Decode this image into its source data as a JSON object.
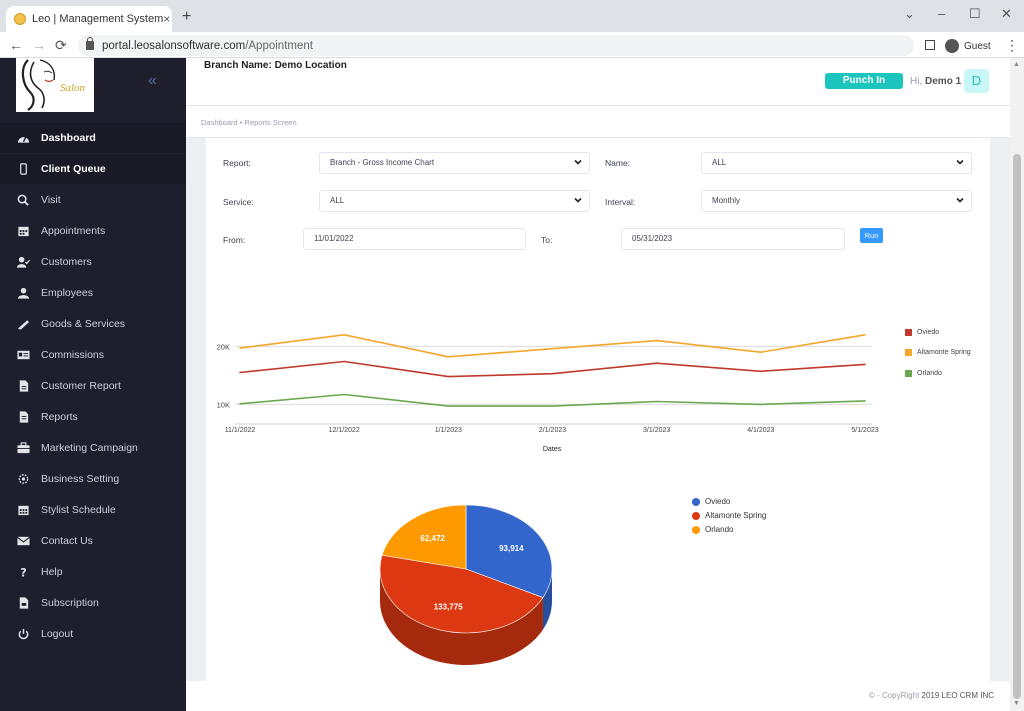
{
  "browser": {
    "tab_title": "Leo | Management System",
    "tab_close": "×",
    "new_tab": "+",
    "url_host": "portal.leosalonsoftware.com",
    "url_path": "/Appointment",
    "profile_label": "Guest",
    "window_controls": [
      "⌄",
      "–",
      "☐",
      "✕"
    ],
    "nav": [
      "←",
      "→",
      "⟳"
    ]
  },
  "sidebar": {
    "logo_text": "Salon",
    "collapse_glyph": "«",
    "items": [
      {
        "label": "Dashboard",
        "icon": "gauge-icon",
        "active": true
      },
      {
        "label": "Client Queue",
        "icon": "tablet-icon",
        "active": true
      },
      {
        "label": "Visit",
        "icon": "search-plus-icon"
      },
      {
        "label": "Appointments",
        "icon": "calendar-icon"
      },
      {
        "label": "Customers",
        "icon": "user-check-icon"
      },
      {
        "label": "Employees",
        "icon": "user-tie-icon"
      },
      {
        "label": "Goods & Services",
        "icon": "tools-icon"
      },
      {
        "label": "Commissions",
        "icon": "id-card-icon"
      },
      {
        "label": "Customer Report",
        "icon": "file-icon"
      },
      {
        "label": "Reports",
        "icon": "file-alt-icon"
      },
      {
        "label": "Marketing Campaign",
        "icon": "briefcase-icon"
      },
      {
        "label": "Business Setting",
        "icon": "gear-icon"
      },
      {
        "label": "Stylist Schedule",
        "icon": "calendar-grid-icon"
      },
      {
        "label": "Contact Us",
        "icon": "envelope-icon"
      },
      {
        "label": "Help",
        "icon": "question-icon"
      },
      {
        "label": "Subscription",
        "icon": "file-invoice-icon"
      },
      {
        "label": "Logout",
        "icon": "power-icon"
      }
    ]
  },
  "header": {
    "branch_name": "Branch Name: Demo Location",
    "punch_in": "Punch In",
    "greeting": "Hi,",
    "user_name": "Demo 1",
    "avatar_initial": "D"
  },
  "breadcrumb": {
    "items": [
      "Dashboard",
      "•",
      "Reports Screen"
    ]
  },
  "form": {
    "report_label": "Report:",
    "report_value": "Branch - Gross Income Chart",
    "name_label": "Name:",
    "name_value": "ALL",
    "service_label": "Service:",
    "service_value": "ALL",
    "interval_label": "Interval:",
    "interval_value": "Monthly",
    "from_label": "From:",
    "from_value": "11/01/2022",
    "to_label": "To:",
    "to_value": "05/31/2023",
    "run_label": "Run"
  },
  "chart_data": [
    {
      "type": "line",
      "title": "",
      "xlabel": "Dates",
      "ylabel": "",
      "x": [
        "11/1/2022",
        "12/1/2022",
        "1/1/2023",
        "2/1/2023",
        "3/1/2023",
        "4/1/2023",
        "5/1/2023"
      ],
      "yticks": [
        "20K",
        "10K"
      ],
      "ytick_values": [
        20000,
        10000
      ],
      "ylim": [
        8000,
        28000
      ],
      "grid": true,
      "legend_position": "right",
      "series": [
        {
          "name": "Oviedo",
          "color": "#c0392b",
          "values": [
            15500,
            17400,
            14800,
            15300,
            17100,
            15700,
            16900
          ]
        },
        {
          "name": "Altamonte Spring",
          "color": "#f4a62a",
          "values": [
            19700,
            22000,
            18200,
            19600,
            21000,
            19000,
            22000
          ]
        },
        {
          "name": "Orlando",
          "color": "#6aa84f",
          "values": [
            10100,
            11700,
            9700,
            9700,
            10500,
            10000,
            10600
          ]
        }
      ]
    },
    {
      "type": "pie",
      "title": "",
      "legend_position": "right",
      "slices": [
        {
          "name": "Oviedo",
          "value": 93914,
          "label": "93,914",
          "color": "#3366cc",
          "shade": "#264f9e"
        },
        {
          "name": "Altamonte Spring",
          "value": 133775,
          "label": "133,775",
          "color": "#dc3912",
          "shade": "#a52a0d"
        },
        {
          "name": "Orlando",
          "value": 62472,
          "label": "62,472",
          "color": "#ff9900",
          "shade": "#c07300"
        }
      ]
    }
  ],
  "footer": {
    "copyright_prefix": "© - CopyRight",
    "copyright_text": "2019 LEO CRM INC"
  }
}
